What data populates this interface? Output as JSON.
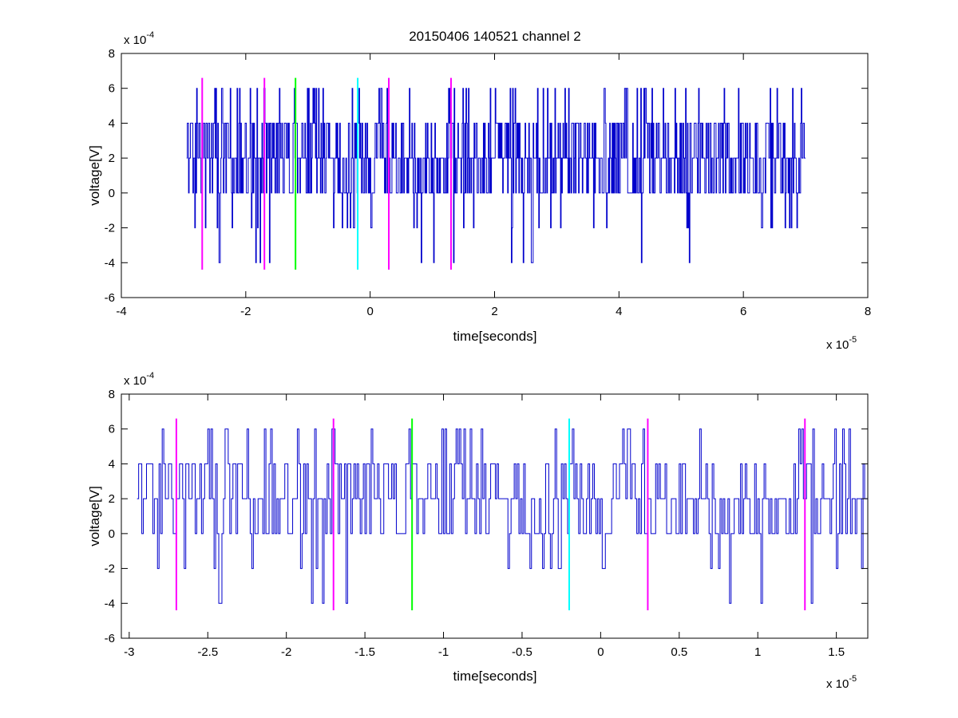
{
  "chart_data": [
    {
      "type": "line",
      "title": "20150406 140521 channel 2",
      "xlabel": "time[seconds]",
      "ylabel": "voltage[V]",
      "x_exponent": "x 10",
      "x_exponent_power": "-5",
      "y_exponent": "x 10",
      "y_exponent_power": "-4",
      "xlim": [
        -4e-05,
        8e-05
      ],
      "ylim": [
        -0.0006,
        0.0008
      ],
      "x_tick_values": [
        -4e-05,
        -2e-05,
        0,
        2e-05,
        4e-05,
        6e-05,
        8e-05
      ],
      "x_tick_labels": [
        "-4",
        "-2",
        "0",
        "2",
        "4",
        "6",
        "8"
      ],
      "y_tick_values": [
        -0.0006,
        -0.0004,
        -0.0002,
        0,
        0.0002,
        0.0004,
        0.0006,
        0.0008
      ],
      "y_tick_labels": [
        "-6",
        "-4",
        "-2",
        "0",
        "2",
        "4",
        "6",
        "8"
      ],
      "grid": false,
      "signal": {
        "color": "#0000cc",
        "x_start": -2.95e-05,
        "x_end": 7e-05,
        "sample_interval": 1e-07,
        "levels": [
          -0.0004,
          -0.0002,
          0,
          0.0002,
          0.0004,
          0.0006
        ]
      },
      "markers": [
        {
          "x": -2.7e-05,
          "y_min": -0.00044,
          "y_max": 0.00066,
          "color": "#ff00ff"
        },
        {
          "x": -1.7e-05,
          "y_min": -0.00044,
          "y_max": 0.00066,
          "color": "#ff00ff"
        },
        {
          "x": -1.2e-05,
          "y_min": -0.00044,
          "y_max": 0.00066,
          "color": "#00ff00"
        },
        {
          "x": -2e-06,
          "y_min": -0.00044,
          "y_max": 0.00066,
          "color": "#00ffff"
        },
        {
          "x": 3e-06,
          "y_min": -0.00044,
          "y_max": 0.00066,
          "color": "#ff00ff"
        },
        {
          "x": 1.3e-05,
          "y_min": -0.00044,
          "y_max": 0.00066,
          "color": "#ff00ff"
        }
      ]
    },
    {
      "type": "line",
      "title": "",
      "xlabel": "time[seconds]",
      "ylabel": "voltage[V]",
      "x_exponent": "x 10",
      "x_exponent_power": "-5",
      "y_exponent": "x 10",
      "y_exponent_power": "-4",
      "xlim": [
        -3.05e-05,
        1.7e-05
      ],
      "ylim": [
        -0.0006,
        0.0008
      ],
      "x_tick_values": [
        -3e-05,
        -2.5e-05,
        -2e-05,
        -1.5e-05,
        -1e-05,
        -5e-06,
        0,
        5e-06,
        1e-05,
        1.5e-05
      ],
      "x_tick_labels": [
        "-3",
        "-2.5",
        "-2",
        "-1.5",
        "-1",
        "-0.5",
        "0",
        "0.5",
        "1",
        "1.5"
      ],
      "y_tick_values": [
        -0.0006,
        -0.0004,
        -0.0002,
        0,
        0.0002,
        0.0004,
        0.0006,
        0.0008
      ],
      "y_tick_labels": [
        "-6",
        "-4",
        "-2",
        "0",
        "2",
        "4",
        "6",
        "8"
      ],
      "grid": false,
      "signal": {
        "color": "#0000cc",
        "x_start": -2.95e-05,
        "x_end": 1.7e-05,
        "sample_interval": 1e-07,
        "levels": [
          -0.0004,
          -0.0002,
          0,
          0.0002,
          0.0004,
          0.0006
        ]
      },
      "markers": [
        {
          "x": -2.7e-05,
          "y_min": -0.00044,
          "y_max": 0.00066,
          "color": "#ff00ff"
        },
        {
          "x": -1.7e-05,
          "y_min": -0.00044,
          "y_max": 0.00066,
          "color": "#ff00ff"
        },
        {
          "x": -1.2e-05,
          "y_min": -0.00044,
          "y_max": 0.00066,
          "color": "#00ff00"
        },
        {
          "x": -2e-06,
          "y_min": -0.00044,
          "y_max": 0.00066,
          "color": "#00ffff"
        },
        {
          "x": 3e-06,
          "y_min": -0.00044,
          "y_max": 0.00066,
          "color": "#ff00ff"
        },
        {
          "x": 1.3e-05,
          "y_min": -0.00044,
          "y_max": 0.00066,
          "color": "#ff00ff"
        }
      ]
    }
  ]
}
